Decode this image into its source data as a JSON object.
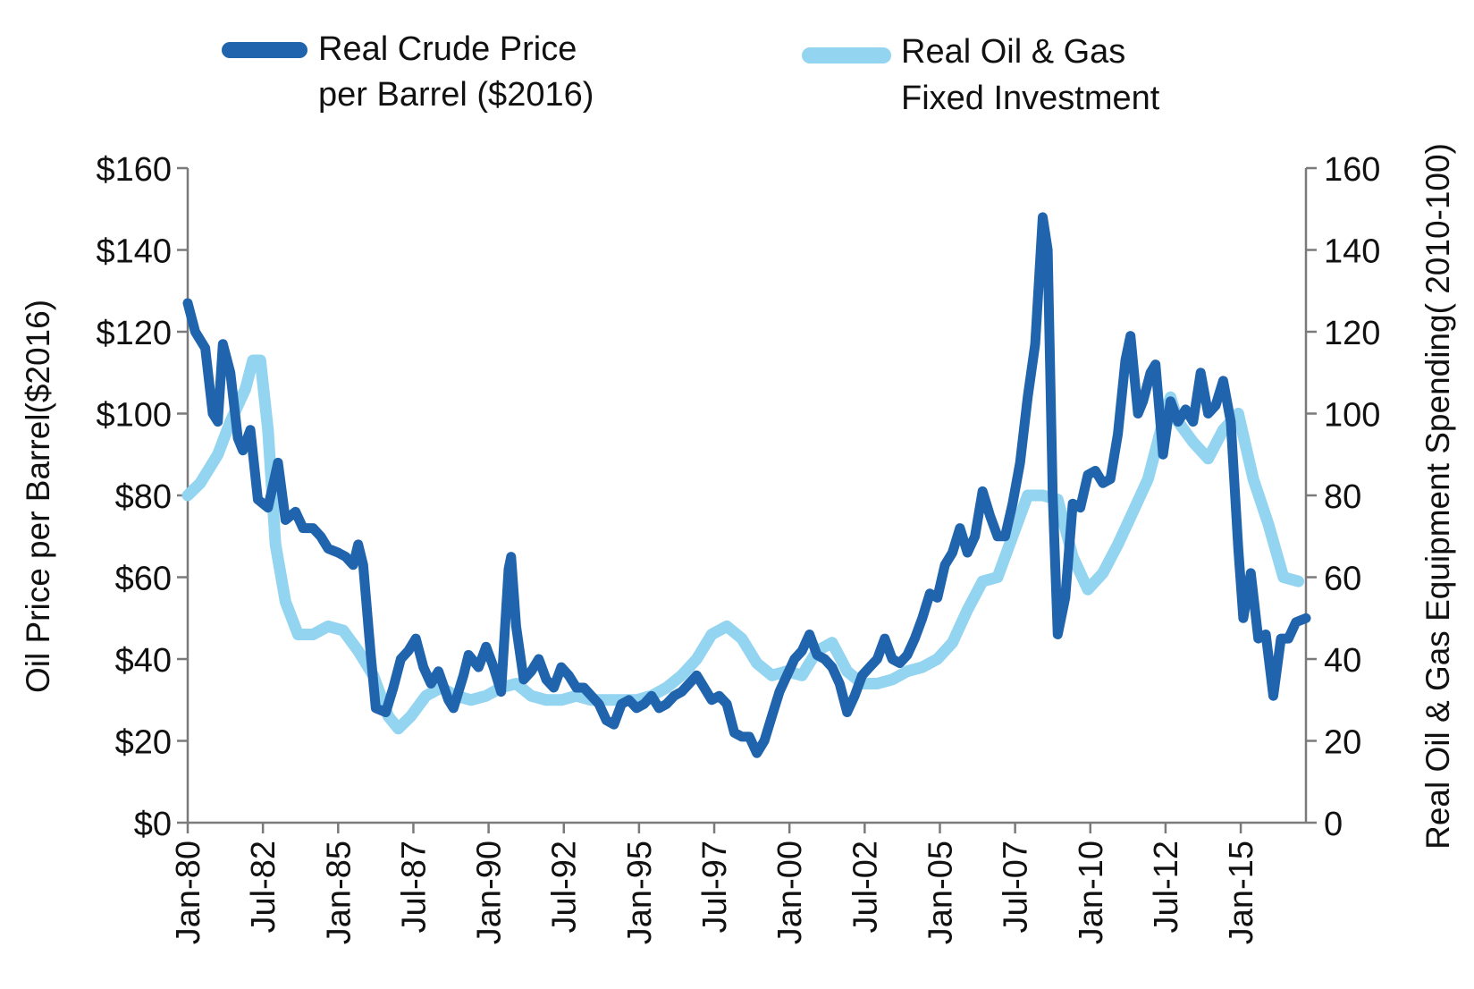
{
  "chart_data": {
    "type": "line",
    "title": "",
    "xlabel": "",
    "ylabel_left": "Oil Price per Barrel($2016)",
    "ylabel_right": "Real Oil & Gas Equipment Spending( 2010-100)",
    "x_range": [
      "1980-01",
      "2017-03"
    ],
    "x_ticks": [
      {
        "date": "1980-01",
        "label": "Jan-80"
      },
      {
        "date": "1982-07",
        "label": "Jul-82"
      },
      {
        "date": "1985-01",
        "label": "Jan-85"
      },
      {
        "date": "1987-07",
        "label": "Jul-87"
      },
      {
        "date": "1990-01",
        "label": "Jan-90"
      },
      {
        "date": "1992-07",
        "label": "Jul-92"
      },
      {
        "date": "1995-01",
        "label": "Jan-95"
      },
      {
        "date": "1997-07",
        "label": "Jul-97"
      },
      {
        "date": "2000-01",
        "label": "Jan-00"
      },
      {
        "date": "2002-07",
        "label": "Jul-02"
      },
      {
        "date": "2005-01",
        "label": "Jan-05"
      },
      {
        "date": "2007-07",
        "label": "Jul-07"
      },
      {
        "date": "2010-01",
        "label": "Jan-10"
      },
      {
        "date": "2012-07",
        "label": "Jul-12"
      },
      {
        "date": "2015-01",
        "label": "Jan-15"
      }
    ],
    "y_left": {
      "range": [
        0,
        160
      ],
      "ticks": [
        0,
        20,
        40,
        60,
        80,
        100,
        120,
        140,
        160
      ],
      "tick_labels": [
        "$0",
        "$20",
        "$40",
        "$60",
        "$80",
        "$100",
        "$120",
        "$140",
        "$160"
      ]
    },
    "y_right": {
      "range": [
        0,
        160
      ],
      "ticks": [
        0,
        20,
        40,
        60,
        80,
        100,
        120,
        140,
        160
      ],
      "tick_labels": [
        "0",
        "20",
        "40",
        "60",
        "80",
        "100",
        "120",
        "140",
        "160"
      ]
    },
    "grid": false,
    "legend": {
      "placement": "top"
    },
    "series": [
      {
        "name": "Real Crude Price per Barrel ($2016)",
        "legend_lines": [
          "Real Crude Price",
          "per Barrel ($2016)"
        ],
        "axis": "left",
        "color": "#1f64ad",
        "points": [
          [
            "1980-01",
            127
          ],
          [
            "1980-04",
            120
          ],
          [
            "1980-08",
            116
          ],
          [
            "1980-11",
            100
          ],
          [
            "1981-01",
            98
          ],
          [
            "1981-03",
            117
          ],
          [
            "1981-06",
            110
          ],
          [
            "1981-09",
            94
          ],
          [
            "1981-11",
            91
          ],
          [
            "1982-02",
            96
          ],
          [
            "1982-05",
            79
          ],
          [
            "1982-09",
            77
          ],
          [
            "1983-01",
            88
          ],
          [
            "1983-04",
            74
          ],
          [
            "1983-08",
            76
          ],
          [
            "1983-11",
            72
          ],
          [
            "1984-03",
            72
          ],
          [
            "1984-06",
            70
          ],
          [
            "1984-09",
            67
          ],
          [
            "1985-01",
            66
          ],
          [
            "1985-04",
            65
          ],
          [
            "1985-07",
            63
          ],
          [
            "1985-09",
            68
          ],
          [
            "1985-11",
            63
          ],
          [
            "1986-02",
            41
          ],
          [
            "1986-04",
            28
          ],
          [
            "1986-08",
            27
          ],
          [
            "1986-11",
            33
          ],
          [
            "1987-02",
            40
          ],
          [
            "1987-05",
            42
          ],
          [
            "1987-08",
            45
          ],
          [
            "1987-11",
            38
          ],
          [
            "1988-02",
            34
          ],
          [
            "1988-05",
            37
          ],
          [
            "1988-09",
            30
          ],
          [
            "1988-11",
            28
          ],
          [
            "1989-03",
            36
          ],
          [
            "1989-05",
            41
          ],
          [
            "1989-09",
            38
          ],
          [
            "1989-12",
            43
          ],
          [
            "1990-03",
            38
          ],
          [
            "1990-06",
            32
          ],
          [
            "1990-09",
            62
          ],
          [
            "1990-10",
            65
          ],
          [
            "1990-12",
            48
          ],
          [
            "1991-03",
            35
          ],
          [
            "1991-06",
            37
          ],
          [
            "1991-09",
            40
          ],
          [
            "1991-12",
            35
          ],
          [
            "1992-03",
            33
          ],
          [
            "1992-06",
            38
          ],
          [
            "1992-09",
            36
          ],
          [
            "1992-12",
            33
          ],
          [
            "1993-03",
            33
          ],
          [
            "1993-06",
            31
          ],
          [
            "1993-09",
            29
          ],
          [
            "1993-12",
            25
          ],
          [
            "1994-03",
            24
          ],
          [
            "1994-06",
            29
          ],
          [
            "1994-09",
            30
          ],
          [
            "1994-12",
            28
          ],
          [
            "1995-03",
            29
          ],
          [
            "1995-06",
            31
          ],
          [
            "1995-09",
            28
          ],
          [
            "1995-12",
            29
          ],
          [
            "1996-03",
            31
          ],
          [
            "1996-06",
            32
          ],
          [
            "1996-09",
            34
          ],
          [
            "1996-12",
            36
          ],
          [
            "1997-03",
            33
          ],
          [
            "1997-06",
            30
          ],
          [
            "1997-09",
            31
          ],
          [
            "1997-12",
            29
          ],
          [
            "1998-03",
            22
          ],
          [
            "1998-06",
            21
          ],
          [
            "1998-09",
            21
          ],
          [
            "1998-12",
            17
          ],
          [
            "1999-03",
            20
          ],
          [
            "1999-06",
            26
          ],
          [
            "1999-09",
            32
          ],
          [
            "1999-12",
            36
          ],
          [
            "2000-03",
            40
          ],
          [
            "2000-06",
            42
          ],
          [
            "2000-09",
            46
          ],
          [
            "2000-12",
            41
          ],
          [
            "2001-03",
            40
          ],
          [
            "2001-06",
            38
          ],
          [
            "2001-09",
            34
          ],
          [
            "2001-12",
            27
          ],
          [
            "2002-03",
            31
          ],
          [
            "2002-06",
            36
          ],
          [
            "2002-09",
            38
          ],
          [
            "2002-12",
            40
          ],
          [
            "2003-03",
            45
          ],
          [
            "2003-06",
            40
          ],
          [
            "2003-09",
            39
          ],
          [
            "2003-12",
            41
          ],
          [
            "2004-03",
            45
          ],
          [
            "2004-06",
            50
          ],
          [
            "2004-09",
            56
          ],
          [
            "2004-12",
            55
          ],
          [
            "2005-03",
            63
          ],
          [
            "2005-06",
            66
          ],
          [
            "2005-09",
            72
          ],
          [
            "2005-12",
            66
          ],
          [
            "2006-03",
            70
          ],
          [
            "2006-06",
            81
          ],
          [
            "2006-09",
            75
          ],
          [
            "2006-12",
            70
          ],
          [
            "2007-03",
            70
          ],
          [
            "2007-06",
            78
          ],
          [
            "2007-09",
            88
          ],
          [
            "2007-12",
            104
          ],
          [
            "2008-03",
            117
          ],
          [
            "2008-06",
            148
          ],
          [
            "2008-08",
            140
          ],
          [
            "2008-10",
            80
          ],
          [
            "2008-12",
            46
          ],
          [
            "2009-03",
            55
          ],
          [
            "2009-06",
            78
          ],
          [
            "2009-09",
            77
          ],
          [
            "2009-12",
            85
          ],
          [
            "2010-03",
            86
          ],
          [
            "2010-06",
            83
          ],
          [
            "2010-09",
            84
          ],
          [
            "2010-12",
            95
          ],
          [
            "2011-03",
            113
          ],
          [
            "2011-05",
            119
          ],
          [
            "2011-08",
            100
          ],
          [
            "2011-10",
            103
          ],
          [
            "2012-01",
            110
          ],
          [
            "2012-03",
            112
          ],
          [
            "2012-06",
            90
          ],
          [
            "2012-09",
            103
          ],
          [
            "2012-12",
            98
          ],
          [
            "2013-03",
            101
          ],
          [
            "2013-06",
            98
          ],
          [
            "2013-09",
            110
          ],
          [
            "2013-12",
            100
          ],
          [
            "2014-03",
            102
          ],
          [
            "2014-06",
            108
          ],
          [
            "2014-09",
            98
          ],
          [
            "2014-12",
            67
          ],
          [
            "2015-02",
            50
          ],
          [
            "2015-05",
            61
          ],
          [
            "2015-08",
            45
          ],
          [
            "2015-11",
            46
          ],
          [
            "2016-02",
            31
          ],
          [
            "2016-05",
            45
          ],
          [
            "2016-08",
            45
          ],
          [
            "2016-11",
            49
          ],
          [
            "2017-03",
            50
          ]
        ]
      },
      {
        "name": "Real Oil & Gas Fixed Investment",
        "legend_lines": [
          "Real Oil & Gas",
          "Fixed Investment"
        ],
        "axis": "right",
        "color": "#93d4f0",
        "points": [
          [
            "1980-01",
            80
          ],
          [
            "1980-06",
            83
          ],
          [
            "1981-01",
            90
          ],
          [
            "1981-06",
            98
          ],
          [
            "1981-12",
            106
          ],
          [
            "1982-03",
            113
          ],
          [
            "1982-06",
            113
          ],
          [
            "1982-09",
            96
          ],
          [
            "1982-12",
            68
          ],
          [
            "1983-04",
            54
          ],
          [
            "1983-09",
            46
          ],
          [
            "1984-03",
            46
          ],
          [
            "1984-09",
            48
          ],
          [
            "1985-03",
            47
          ],
          [
            "1985-09",
            42
          ],
          [
            "1986-03",
            36
          ],
          [
            "1986-09",
            26
          ],
          [
            "1987-01",
            23
          ],
          [
            "1987-06",
            26
          ],
          [
            "1987-12",
            31
          ],
          [
            "1988-06",
            33
          ],
          [
            "1988-12",
            31
          ],
          [
            "1989-06",
            30
          ],
          [
            "1989-12",
            31
          ],
          [
            "1990-06",
            33
          ],
          [
            "1990-12",
            34
          ],
          [
            "1991-06",
            31
          ],
          [
            "1991-12",
            30
          ],
          [
            "1992-06",
            30
          ],
          [
            "1992-12",
            31
          ],
          [
            "1993-06",
            30
          ],
          [
            "1993-12",
            30
          ],
          [
            "1994-06",
            30
          ],
          [
            "1994-12",
            30
          ],
          [
            "1995-06",
            31
          ],
          [
            "1995-12",
            33
          ],
          [
            "1996-06",
            36
          ],
          [
            "1996-12",
            40
          ],
          [
            "1997-06",
            46
          ],
          [
            "1997-12",
            48
          ],
          [
            "1998-06",
            45
          ],
          [
            "1998-12",
            39
          ],
          [
            "1999-06",
            36
          ],
          [
            "1999-12",
            37
          ],
          [
            "2000-06",
            36
          ],
          [
            "2000-12",
            42
          ],
          [
            "2001-06",
            44
          ],
          [
            "2001-12",
            37
          ],
          [
            "2002-06",
            34
          ],
          [
            "2002-12",
            34
          ],
          [
            "2003-06",
            35
          ],
          [
            "2003-12",
            37
          ],
          [
            "2004-06",
            38
          ],
          [
            "2004-12",
            40
          ],
          [
            "2005-06",
            44
          ],
          [
            "2005-12",
            52
          ],
          [
            "2006-06",
            59
          ],
          [
            "2006-12",
            60
          ],
          [
            "2007-06",
            70
          ],
          [
            "2007-12",
            80
          ],
          [
            "2008-06",
            80
          ],
          [
            "2008-12",
            79
          ],
          [
            "2009-06",
            65
          ],
          [
            "2009-12",
            57
          ],
          [
            "2010-06",
            61
          ],
          [
            "2010-12",
            68
          ],
          [
            "2011-06",
            76
          ],
          [
            "2011-12",
            84
          ],
          [
            "2012-06",
            98
          ],
          [
            "2012-09",
            104
          ],
          [
            "2012-12",
            98
          ],
          [
            "2013-06",
            93
          ],
          [
            "2013-12",
            89
          ],
          [
            "2014-06",
            96
          ],
          [
            "2014-12",
            100
          ],
          [
            "2015-06",
            84
          ],
          [
            "2015-12",
            73
          ],
          [
            "2016-06",
            60
          ],
          [
            "2016-12",
            59
          ]
        ]
      }
    ]
  }
}
